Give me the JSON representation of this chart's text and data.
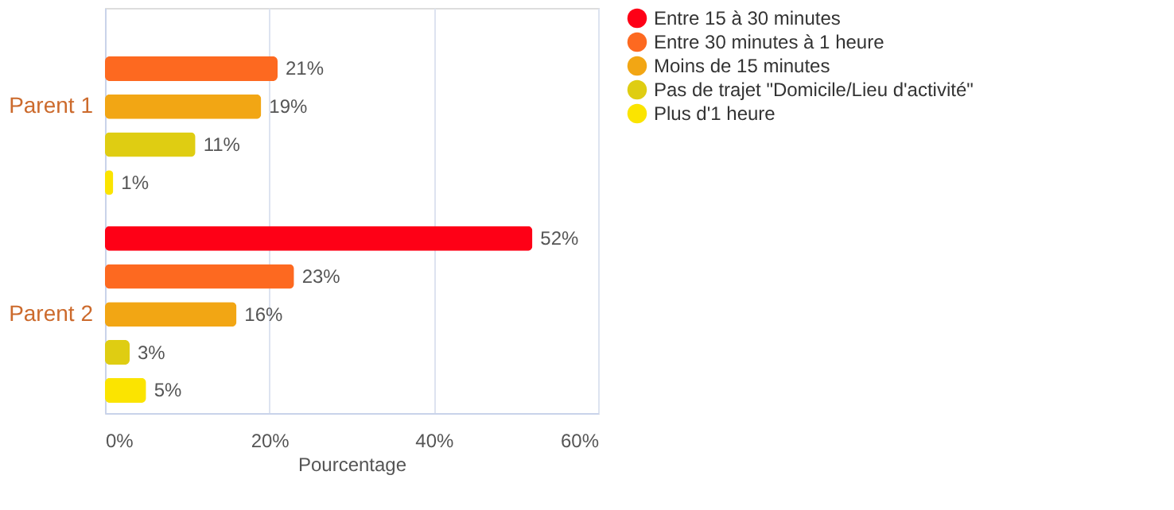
{
  "chart_data": {
    "type": "bar",
    "orientation": "horizontal",
    "xlabel": "Pourcentage",
    "categories": [
      "Parent 1",
      "Parent 2"
    ],
    "series": [
      {
        "name": "Entre 15 à 30 minutes",
        "color": "#fe0016",
        "values": [
          null,
          52
        ],
        "value_labels": [
          null,
          "52%"
        ]
      },
      {
        "name": "Entre 30 minutes à 1 heure",
        "color": "#fd6920",
        "values": [
          21,
          23
        ],
        "value_labels": [
          "21%",
          "23%"
        ]
      },
      {
        "name": "Moins de 15 minutes",
        "color": "#f2a614",
        "values": [
          19,
          16
        ],
        "value_labels": [
          "19%",
          "16%"
        ]
      },
      {
        "name": "Pas de trajet \"Domicile/Lieu d'activité\"",
        "color": "#dfcd12",
        "values": [
          11,
          3
        ],
        "value_labels": [
          "11%",
          "3%"
        ]
      },
      {
        "name": "Plus d'1 heure",
        "color": "#fbe400",
        "values": [
          1,
          5
        ],
        "value_labels": [
          "1%",
          "5%"
        ]
      }
    ],
    "xlim": [
      0,
      60
    ],
    "xticks": [
      {
        "value": 0,
        "label": "0%"
      },
      {
        "value": 20,
        "label": "20%"
      },
      {
        "value": 40,
        "label": "40%"
      },
      {
        "value": 60,
        "label": "60%"
      }
    ],
    "grid": "x",
    "legend": "right"
  }
}
